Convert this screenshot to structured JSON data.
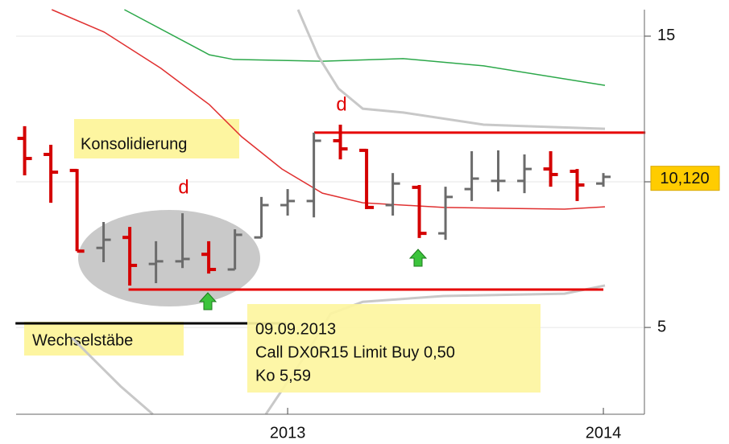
{
  "chart_data": {
    "type": "ohlc",
    "x": [
      2012.167,
      2012.25,
      2012.333,
      2012.417,
      2012.5,
      2012.583,
      2012.667,
      2012.75,
      2012.833,
      2012.917,
      2013.0,
      2013.083,
      2013.167,
      2013.25,
      2013.333,
      2013.417,
      2013.5,
      2013.583,
      2013.667,
      2013.75,
      2013.833,
      2013.917,
      2014.0
    ],
    "open": [
      11.49,
      10.94,
      10.39,
      7.73,
      8.09,
      7.18,
      7.27,
      7.51,
      6.99,
      8.09,
      9.2,
      9.34,
      11.41,
      11.08,
      9.2,
      9.81,
      8.23,
      9.75,
      10.03,
      10.03,
      10.44,
      10.36,
      9.94
    ],
    "high": [
      11.91,
      11.27,
      10.44,
      8.62,
      8.45,
      7.96,
      8.92,
      7.96,
      8.37,
      9.48,
      9.75,
      11.69,
      11.96,
      11.13,
      10.3,
      9.89,
      9.83,
      11.05,
      11.08,
      10.94,
      11.05,
      10.44,
      10.3
    ],
    "low": [
      10.22,
      9.28,
      7.62,
      7.24,
      6.44,
      6.52,
      7.04,
      6.85,
      6.99,
      8.09,
      8.84,
      8.78,
      10.77,
      9.06,
      8.84,
      8.07,
      8.01,
      9.34,
      9.67,
      9.61,
      9.83,
      9.34,
      9.83
    ],
    "close": [
      10.8,
      10.33,
      7.62,
      8.01,
      7.13,
      7.27,
      7.35,
      6.99,
      8.18,
      9.2,
      9.34,
      11.41,
      11.13,
      9.12,
      9.94,
      8.23,
      9.48,
      10.11,
      10.03,
      10.44,
      10.25,
      9.89,
      10.17
    ],
    "up_color": "#6b6b6b",
    "down_color": "#d40000",
    "lines": [
      {
        "color": "#e03030",
        "x": [
          2012.253,
          2012.419,
          2012.598,
          2012.752,
          2012.854,
          2012.982,
          2013.11,
          2013.238,
          2013.494,
          2013.877,
          2014.005
        ],
        "values": [
          15.91,
          15.14,
          13.9,
          12.65,
          11.55,
          10.44,
          9.61,
          9.28,
          9.12,
          9.06,
          9.14
        ]
      },
      {
        "color": "#2ca84a",
        "x": [
          2012.483,
          2012.752,
          2012.829,
          2013.11,
          2013.366,
          2013.621,
          2014.005
        ],
        "values": [
          15.91,
          14.36,
          14.2,
          14.14,
          14.23,
          13.98,
          13.31
        ]
      },
      {
        "color": "#c8c8c8",
        "x": [
          2013.033,
          2013.097,
          2013.161,
          2013.238,
          2013.366,
          2013.621,
          2014.005
        ],
        "values": [
          15.91,
          14.31,
          13.2,
          12.51,
          12.38,
          11.96,
          11.82
        ]
      },
      {
        "color": "#c8c8c8",
        "x": [
          2012.317,
          2012.471,
          2012.573
        ],
        "values": [
          4.64,
          2.98,
          2.02
        ]
      },
      {
        "color": "#c8c8c8",
        "x": [
          2012.931,
          2013.059,
          2013.136,
          2013.238,
          2013.494,
          2013.877,
          2014.005
        ],
        "values": [
          2.02,
          4.09,
          5.47,
          5.88,
          6.08,
          6.16,
          6.44
        ]
      }
    ],
    "levels": [
      {
        "color": "#e60000",
        "x": [
          2013.084,
          2014.133
        ],
        "value": 11.69
      },
      {
        "color": "#e60000",
        "x": [
          2012.496,
          2014.0
        ],
        "value": 6.3
      },
      {
        "color": "#000000",
        "x": [
          2012.138,
          2012.995
        ],
        "value": 5.14
      }
    ],
    "last_price": {
      "value": 10.12,
      "label": "10,120"
    },
    "xlim": [
      2012.14,
      2014.13
    ],
    "ylim": [
      2.02,
      15.91
    ],
    "xticks": [
      2013,
      2014
    ],
    "yticks": [
      5,
      10,
      15
    ],
    "grid": true,
    "annotations": {
      "consolidation": "Konsolidierung",
      "alternating": "Wechselstäbe",
      "signal_1": "d",
      "signal_2": "d",
      "order": [
        "09.09.2013",
        "Call DX0R15 Limit Buy 0,50",
        "Ko 5,59"
      ]
    }
  }
}
